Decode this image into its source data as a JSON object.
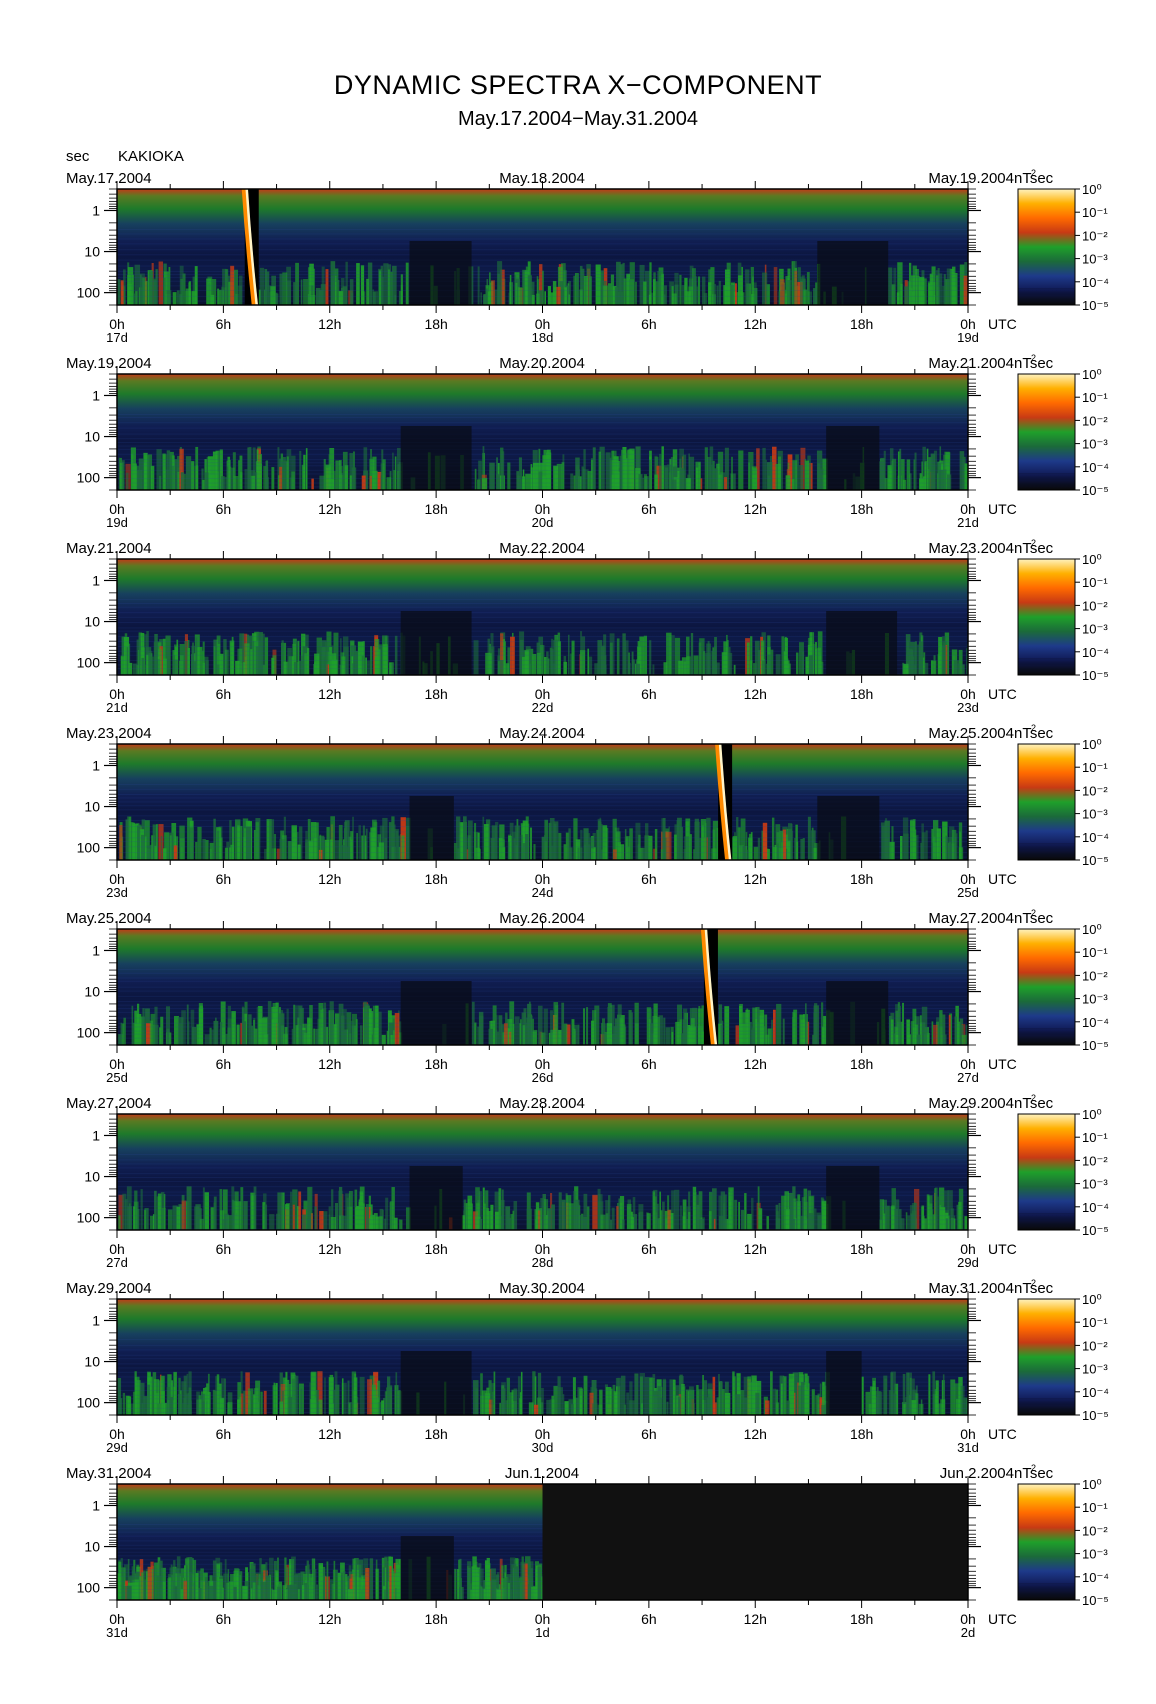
{
  "title": "DYNAMIC SPECTRA X−COMPONENT",
  "subtitle": "May.17.2004−May.31.2004",
  "unit_label": "sec",
  "station": "KAKIOKA",
  "colorbar": {
    "unit": "nT²sec",
    "ticks": [
      "10⁰",
      "10⁻¹",
      "10⁻²",
      "10⁻³",
      "10⁻⁴",
      "10⁻⁵"
    ],
    "colors": [
      "#0a0a0a",
      "#101a55",
      "#1e3a8a",
      "#1b6a3a",
      "#1fa02a",
      "#c83a14",
      "#ff6a00",
      "#ffb000",
      "#fff3c0"
    ]
  },
  "chart_data": {
    "type": "heatmap",
    "title": "DYNAMIC SPECTRA X−COMPONENT",
    "subtitle": "May.17.2004−May.31.2004",
    "ylabel": "sec",
    "y_ticks": [
      "1",
      "10",
      "100"
    ],
    "y_scale": "log",
    "y_range_sec": [
      0.3,
      200
    ],
    "x_ticks": [
      "0h",
      "6h",
      "12h",
      "18h",
      "0h",
      "6h",
      "12h",
      "18h",
      "0h"
    ],
    "x_unit": "UTC",
    "zlabel": "nT²sec",
    "z_range": [
      "10⁻⁵",
      "10⁰"
    ],
    "panels": [
      {
        "left_date": "May.17.2004",
        "mid_date": "May.18.2004",
        "right_date": "May.19.2004",
        "day_labels": [
          "17d",
          "18d",
          "19d"
        ],
        "events_h": [
          7.6
        ],
        "quiet_h": [
          [
            16.5,
            20
          ],
          [
            39.5,
            43.5
          ]
        ],
        "no_data_from_h": null
      },
      {
        "left_date": "May.19.2004",
        "mid_date": "May.20.2004",
        "right_date": "May.21.2004",
        "day_labels": [
          "19d",
          "20d",
          "21d"
        ],
        "events_h": [],
        "quiet_h": [
          [
            16,
            20
          ],
          [
            40,
            43
          ]
        ],
        "no_data_from_h": null
      },
      {
        "left_date": "May.21.2004",
        "mid_date": "May.22.2004",
        "right_date": "May.23.2004",
        "day_labels": [
          "21d",
          "22d",
          "23d"
        ],
        "events_h": [],
        "quiet_h": [
          [
            16,
            20
          ],
          [
            40,
            44
          ]
        ],
        "no_data_from_h": null
      },
      {
        "left_date": "May.23.2004",
        "mid_date": "May.24.2004",
        "right_date": "May.25.2004",
        "day_labels": [
          "23d",
          "24d",
          "25d"
        ],
        "events_h": [
          34.3
        ],
        "quiet_h": [
          [
            16.5,
            19
          ],
          [
            39.5,
            43
          ]
        ],
        "no_data_from_h": null
      },
      {
        "left_date": "May.25.2004",
        "mid_date": "May.26.2004",
        "right_date": "May.27.2004",
        "day_labels": [
          "25d",
          "26d",
          "27d"
        ],
        "events_h": [
          33.5
        ],
        "quiet_h": [
          [
            16,
            20
          ],
          [
            40,
            43.5
          ]
        ],
        "no_data_from_h": null
      },
      {
        "left_date": "May.27.2004",
        "mid_date": "May.28.2004",
        "right_date": "May.29.2004",
        "day_labels": [
          "27d",
          "28d",
          "29d"
        ],
        "events_h": [],
        "quiet_h": [
          [
            16.5,
            19.5
          ],
          [
            40,
            43
          ]
        ],
        "no_data_from_h": null
      },
      {
        "left_date": "May.29.2004",
        "mid_date": "May.30.2004",
        "right_date": "May.31.2004",
        "day_labels": [
          "29d",
          "30d",
          "31d"
        ],
        "events_h": [],
        "quiet_h": [
          [
            16,
            20
          ],
          [
            40,
            42
          ]
        ],
        "no_data_from_h": null
      },
      {
        "left_date": "May.31.2004",
        "mid_date": "Jun.1.2004",
        "right_date": "Jun.2.2004",
        "day_labels": [
          "31d",
          "1d",
          "2d"
        ],
        "events_h": [],
        "quiet_h": [
          [
            16,
            19
          ]
        ],
        "no_data_from_h": 24
      }
    ]
  }
}
